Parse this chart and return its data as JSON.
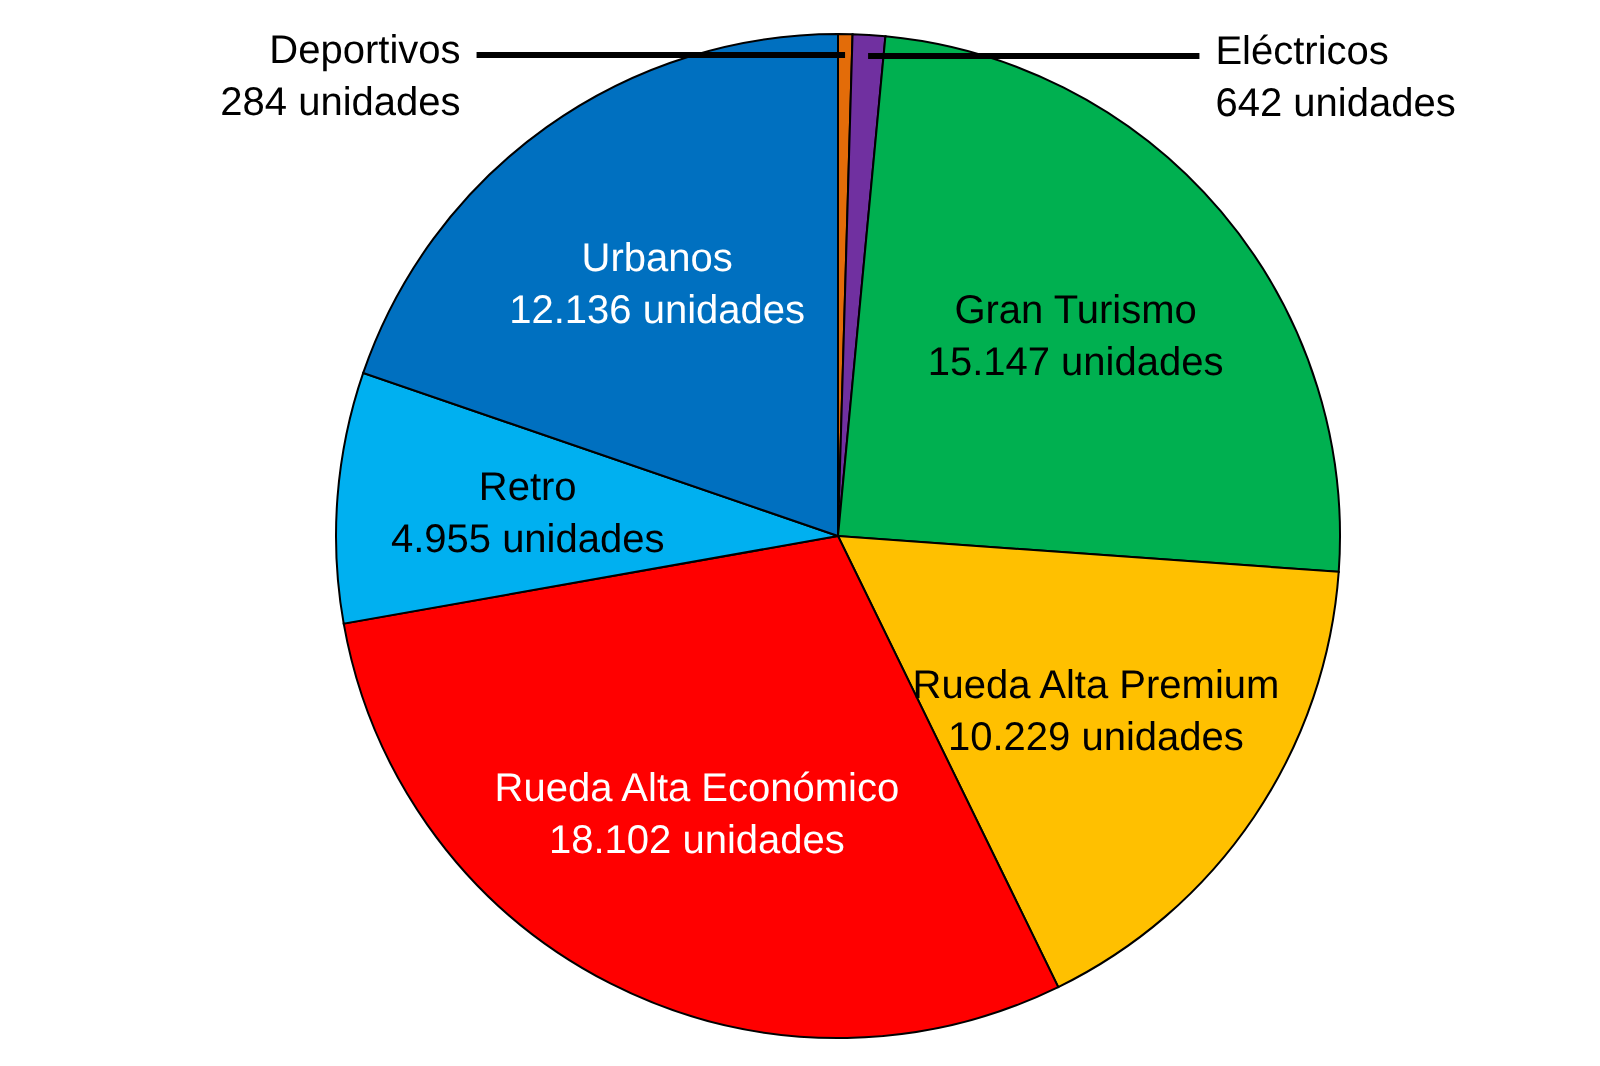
{
  "chart_data": {
    "type": "pie",
    "categories": [
      "Deportivos",
      "Eléctricos",
      "Gran Turismo",
      "Rueda Alta Premium",
      "Rueda Alta Económico",
      "Retro",
      "Urbanos"
    ],
    "values": [
      284,
      642,
      15147,
      10229,
      18102,
      4955,
      12136
    ],
    "value_labels": [
      "284 unidades",
      "642 unidades",
      "15.147 unidades",
      "10.229 unidades",
      "18.102 unidades",
      "4.955 unidades",
      "12.136 unidades"
    ],
    "colors": [
      "#e36c09",
      "#7030a0",
      "#00b050",
      "#ffc000",
      "#ff0000",
      "#00b0f0",
      "#0070c0"
    ]
  }
}
